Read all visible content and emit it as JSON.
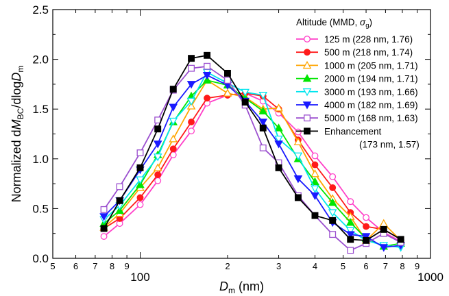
{
  "chart_data": {
    "type": "line",
    "xscale": "log",
    "xlim": [
      50,
      1000
    ],
    "ylim": [
      0.0,
      2.5
    ],
    "ylabel": "Normalized dM_BC/dlogD_m",
    "xlabel": "D_m (nm)",
    "x_major_ticks": [
      {
        "value": 100,
        "label": "100"
      },
      {
        "value": 1000,
        "label": "1000"
      }
    ],
    "x_minor_ticks": [
      {
        "value": 50,
        "label": "5"
      },
      {
        "value": 60,
        "label": "6"
      },
      {
        "value": 70,
        "label": "7"
      },
      {
        "value": 80,
        "label": "8"
      },
      {
        "value": 90,
        "label": "9"
      },
      {
        "value": 200,
        "label": "2"
      },
      {
        "value": 300,
        "label": "3"
      },
      {
        "value": 400,
        "label": "4"
      },
      {
        "value": 500,
        "label": "5"
      },
      {
        "value": 600,
        "label": "6"
      },
      {
        "value": 700,
        "label": "7"
      },
      {
        "value": 800,
        "label": "8"
      },
      {
        "value": 900,
        "label": "9"
      }
    ],
    "y_ticks": [
      "0.0",
      "0.5",
      "1.0",
      "1.5",
      "2.0",
      "2.5"
    ],
    "legend_title": "Altitude (MMD, σ_g)",
    "legend_position": "top-right",
    "x": [
      75,
      85,
      100,
      115,
      130,
      150,
      170,
      200,
      230,
      265,
      300,
      350,
      400,
      460,
      530,
      600,
      690,
      790
    ],
    "series": [
      {
        "name": "125 m (228 nm, 1.76)",
        "color": "#ff3fc8",
        "marker": "circle-open",
        "values": [
          0.22,
          0.35,
          0.54,
          0.78,
          1.04,
          1.28,
          1.56,
          1.64,
          1.66,
          1.58,
          1.46,
          1.27,
          1.03,
          0.82,
          0.57,
          0.41,
          0.26,
          0.17
        ]
      },
      {
        "name": "500 m (218 nm, 1.74)",
        "color": "#ff1a1a",
        "marker": "circle-filled",
        "values": [
          0.3,
          0.4,
          0.61,
          0.84,
          1.1,
          1.37,
          1.61,
          1.64,
          1.66,
          1.63,
          1.5,
          1.19,
          0.94,
          0.71,
          0.46,
          0.32,
          0.29,
          0.19
        ]
      },
      {
        "name": "1000 m (205 nm, 1.71)",
        "color": "#ffa500",
        "marker": "triangle-up-open",
        "values": [
          0.31,
          0.45,
          0.71,
          0.91,
          1.2,
          1.53,
          1.79,
          1.66,
          1.62,
          1.5,
          1.51,
          1.17,
          0.85,
          0.6,
          0.42,
          0.18,
          0.35,
          0.18
        ]
      },
      {
        "name": "2000 m (194 nm, 1.71)",
        "color": "#00e600",
        "marker": "triangle-up-filled",
        "values": [
          0.35,
          0.48,
          0.74,
          1.04,
          1.37,
          1.63,
          1.79,
          1.74,
          1.61,
          1.48,
          1.31,
          1.0,
          0.77,
          0.56,
          0.36,
          0.2,
          0.12,
          0.15
        ]
      },
      {
        "name": "3000 m (193 nm, 1.66)",
        "color": "#00e5ee",
        "marker": "triangle-down-open",
        "values": [
          0.39,
          0.53,
          0.79,
          1.02,
          1.38,
          1.58,
          1.87,
          1.76,
          1.67,
          1.64,
          1.2,
          1.03,
          0.7,
          0.46,
          0.28,
          0.18,
          0.13,
          0.11
        ]
      },
      {
        "name": "4000 m (182 nm, 1.69)",
        "color": "#1a1aff",
        "marker": "triangle-down-filled",
        "values": [
          0.42,
          0.58,
          0.89,
          1.15,
          1.52,
          1.75,
          1.84,
          1.74,
          1.58,
          1.37,
          1.15,
          0.8,
          0.63,
          0.36,
          0.24,
          0.22,
          0.11,
          0.13
        ]
      },
      {
        "name": "5000 m (168 nm, 1.63)",
        "color": "#9b4fcf",
        "marker": "square-open",
        "values": [
          0.49,
          0.72,
          1.06,
          1.39,
          1.69,
          1.91,
          1.93,
          1.79,
          1.54,
          1.11,
          0.96,
          0.63,
          0.43,
          0.24,
          0.08,
          0.15,
          0.25,
          0.16
        ]
      },
      {
        "name": "Enhancement",
        "name_line2": "(173 nm, 1.57)",
        "color": "#000000",
        "marker": "square-filled",
        "values": [
          0.3,
          0.58,
          0.91,
          1.3,
          1.7,
          2.01,
          2.04,
          1.86,
          1.57,
          1.31,
          0.91,
          0.61,
          0.43,
          0.38,
          0.19,
          0.18,
          0.29,
          0.19
        ]
      }
    ],
    "grid": false
  }
}
